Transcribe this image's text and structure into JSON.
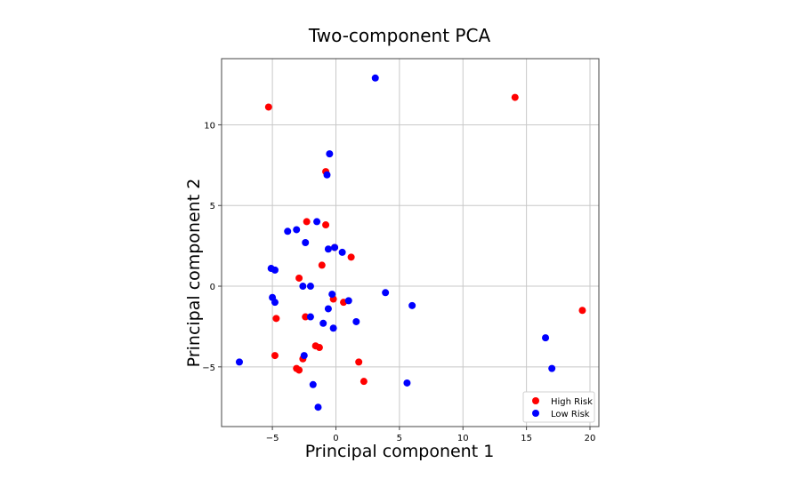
{
  "chart_data": {
    "type": "scatter",
    "title": "Two-component PCA",
    "xlabel": "Principal component 1",
    "ylabel": "Principal component 2",
    "xlim": [
      -9,
      20.7
    ],
    "ylim": [
      -8.7,
      14.1
    ],
    "xticks": [
      -5,
      0,
      5,
      10,
      15,
      20
    ],
    "yticks": [
      -5,
      0,
      5,
      10
    ],
    "grid": true,
    "legend_position": "bottom-right",
    "series": [
      {
        "name": "High Risk",
        "color": "#ff0000",
        "points": [
          [
            -5.3,
            11.1
          ],
          [
            14.1,
            11.7
          ],
          [
            19.4,
            -1.5
          ],
          [
            -0.8,
            7.1
          ],
          [
            -2.3,
            4.0
          ],
          [
            -0.8,
            3.8
          ],
          [
            -0.1,
            2.4
          ],
          [
            1.2,
            1.8
          ],
          [
            -1.1,
            1.3
          ],
          [
            -2.9,
            0.5
          ],
          [
            -0.2,
            -0.8
          ],
          [
            0.6,
            -1.0
          ],
          [
            -4.7,
            -2.0
          ],
          [
            -2.4,
            -1.9
          ],
          [
            -1.6,
            -3.7
          ],
          [
            -1.3,
            -3.8
          ],
          [
            -4.8,
            -4.3
          ],
          [
            -2.6,
            -4.5
          ],
          [
            1.8,
            -4.7
          ],
          [
            -3.1,
            -5.1
          ],
          [
            -2.9,
            -5.2
          ],
          [
            2.2,
            -5.9
          ]
        ]
      },
      {
        "name": "Low Risk",
        "color": "#0000ff",
        "points": [
          [
            3.1,
            12.9
          ],
          [
            -0.5,
            8.2
          ],
          [
            -0.7,
            6.9
          ],
          [
            -1.5,
            4.0
          ],
          [
            -3.8,
            3.4
          ],
          [
            -3.1,
            3.5
          ],
          [
            -2.4,
            2.7
          ],
          [
            -0.1,
            2.4
          ],
          [
            -0.6,
            2.3
          ],
          [
            0.5,
            2.1
          ],
          [
            -5.1,
            1.1
          ],
          [
            -4.8,
            1.0
          ],
          [
            -2.6,
            0.0
          ],
          [
            -2.0,
            0.0
          ],
          [
            -0.3,
            -0.5
          ],
          [
            3.9,
            -0.4
          ],
          [
            -5.0,
            -0.7
          ],
          [
            -4.8,
            -1.0
          ],
          [
            1.0,
            -0.9
          ],
          [
            6.0,
            -1.2
          ],
          [
            -0.6,
            -1.4
          ],
          [
            -2.0,
            -1.9
          ],
          [
            -1.0,
            -2.3
          ],
          [
            1.6,
            -2.2
          ],
          [
            -0.2,
            -2.6
          ],
          [
            16.5,
            -3.2
          ],
          [
            -7.6,
            -4.7
          ],
          [
            -2.5,
            -4.3
          ],
          [
            17.0,
            -5.1
          ],
          [
            -1.8,
            -6.1
          ],
          [
            5.6,
            -6.0
          ],
          [
            -1.4,
            -7.5
          ]
        ]
      }
    ]
  }
}
